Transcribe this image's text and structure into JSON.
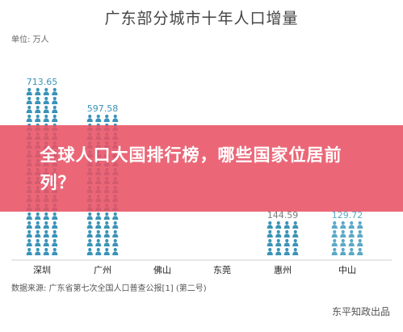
{
  "chart_data": {
    "type": "bar",
    "title": "广东部分城市十年人口增量",
    "unit_label": "单位: 万人",
    "categories": [
      "深圳",
      "广州",
      "佛山",
      "东莞",
      "惠州",
      "中山"
    ],
    "values": [
      713.65,
      597.58,
      null,
      null,
      144.59,
      129.72
    ],
    "value_labels": [
      "713.65",
      "597.58",
      "",
      "",
      "144.59",
      "129.72"
    ],
    "ylim": [
      0,
      760
    ],
    "bar_colors": [
      "#3a93b8",
      "#3a93b8",
      "#d9714a",
      "#5aa8c8",
      "#3a93b8",
      "#5aa8c8"
    ],
    "label_colors": [
      "#3a93b8",
      "#3a93b8",
      "#d9714a",
      "#5aa8c8",
      "#7a7a7a",
      "#5aa8c8"
    ],
    "marker": "person-icon",
    "source": "数据来源: 广东省第七次全国人口普查公报[1] (第二号)",
    "watermark": "东平知政出品"
  },
  "banner": {
    "text": "全球人口大国排行榜，哪些国家位居前列？"
  }
}
